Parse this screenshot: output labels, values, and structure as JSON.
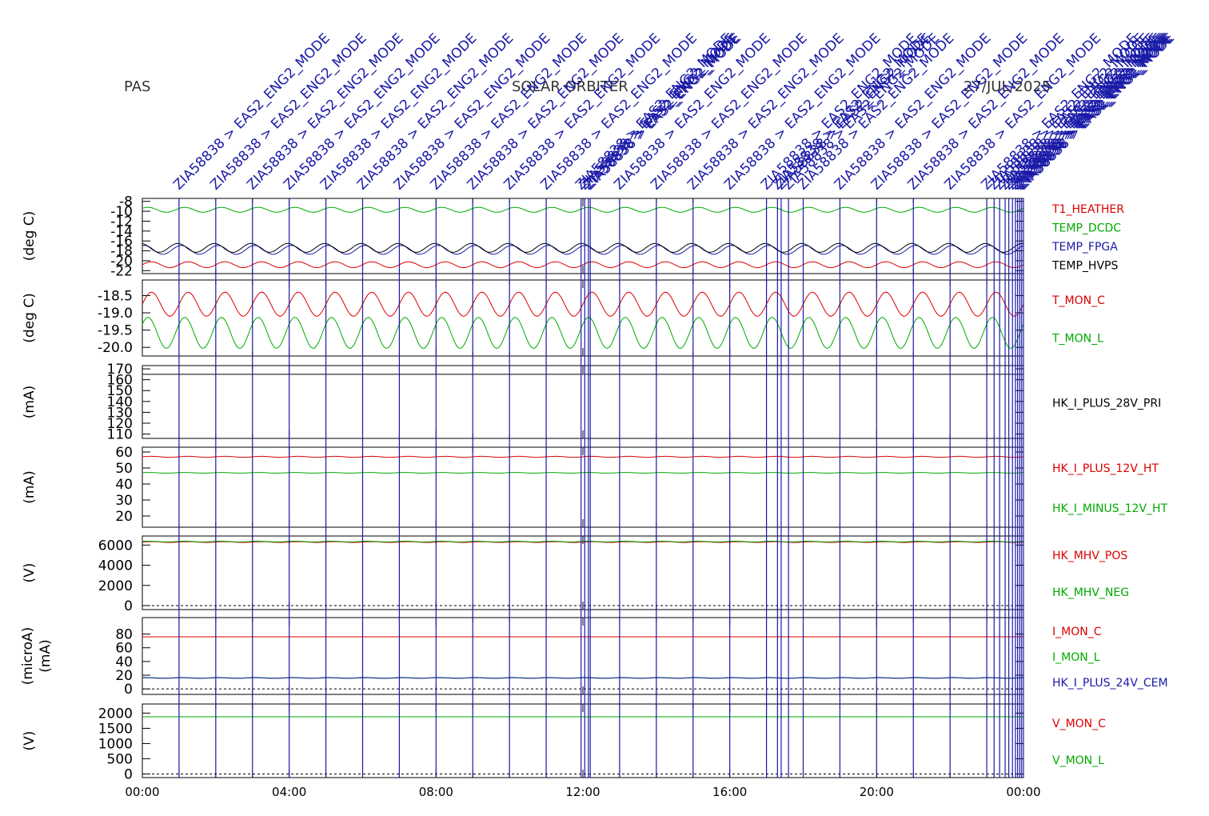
{
  "header": {
    "left": "PAS",
    "center": "SOLAR ORBITER",
    "right": "27/JUL/2025"
  },
  "event_label": "ZIA58838 > EAS2_ENG2_MODE",
  "colors": {
    "red": "#dd0000",
    "green": "#00aa00",
    "blue": "#1a1aa8",
    "black": "#000000"
  },
  "chart_data": [
    {
      "type": "line",
      "ylabel": "(deg C)",
      "yticks": [
        -22,
        -20,
        -18,
        -16,
        -14,
        -12,
        -10,
        -8
      ],
      "ylim": [
        -22.6,
        -7.4
      ],
      "grid": false,
      "series": [
        {
          "name": "T1_HEATHER",
          "color": "#dd0000",
          "base": -20.8,
          "amp": 0.6
        },
        {
          "name": "TEMP_DCDC",
          "color": "#00aa00",
          "base": -9.7,
          "amp": 0.5
        },
        {
          "name": "TEMP_FPGA",
          "color": "#1a1aa8",
          "base": -17.8,
          "amp": 0.9
        },
        {
          "name": "TEMP_HVPS",
          "color": "#000000",
          "base": -17.4,
          "amp": 0.9
        }
      ]
    },
    {
      "type": "line",
      "ylabel": "(deg C)",
      "yticks": [
        "-18.5",
        "-19.0",
        "-19.5",
        "-20.0"
      ],
      "ylim": [
        -20.25,
        -18.05
      ],
      "grid": false,
      "series": [
        {
          "name": "T_MON_C",
          "color": "#dd0000",
          "base": -18.75,
          "amp": 0.35
        },
        {
          "name": "T_MON_L",
          "color": "#00aa00",
          "base": -19.58,
          "amp": 0.45
        }
      ]
    },
    {
      "type": "line",
      "ylabel": "(mA)",
      "yticks": [
        110,
        120,
        130,
        140,
        150,
        160,
        170
      ],
      "ylim": [
        106,
        173
      ],
      "grid": false,
      "series": [
        {
          "name": "HK_I_PLUS_28V_PRI",
          "color": "#000000",
          "base": 165,
          "amp": 0
        }
      ]
    },
    {
      "type": "line",
      "ylabel": "(mA)",
      "yticks": [
        20,
        30,
        40,
        50,
        60
      ],
      "ylim": [
        13,
        63
      ],
      "grid": false,
      "series": [
        {
          "name": "HK_I_PLUS_12V_HT",
          "color": "#dd0000",
          "base": 57,
          "amp": 0.3
        },
        {
          "name": "HK_I_MINUS_12V_HT",
          "color": "#00aa00",
          "base": 47,
          "amp": 0.2
        }
      ]
    },
    {
      "type": "line",
      "ylabel": "(V)",
      "yticks": [
        0,
        2000,
        4000,
        6000
      ],
      "ylim": [
        -400,
        6900
      ],
      "grid": false,
      "series": [
        {
          "name": "HK_MHV_POS",
          "color": "#dd0000",
          "base": 6300,
          "amp": 40
        },
        {
          "name": "HK_MHV_NEG",
          "color": "#00aa00",
          "base": 6350,
          "amp": 40
        }
      ]
    },
    {
      "type": "line",
      "ylabel": "(microA)",
      "ylabel2": "(mA)",
      "yticks": [
        0,
        20,
        40,
        60,
        80
      ],
      "ylim": [
        -8,
        104
      ],
      "grid": false,
      "series": [
        {
          "name": "I_MON_C",
          "color": "#dd0000",
          "base": 76,
          "amp": 0
        },
        {
          "name": "I_MON_L",
          "color": "#00aa00",
          "base": 16,
          "amp": 0.3
        },
        {
          "name": "HK_I_PLUS_24V_CEM",
          "color": "#1a1aa8",
          "base": 16,
          "amp": 0.6
        }
      ]
    },
    {
      "type": "line",
      "ylabel": "(V)",
      "yticks": [
        0,
        500,
        1000,
        1500,
        2000
      ],
      "ylim": [
        -120,
        2300
      ],
      "grid": false,
      "series": [
        {
          "name": "V_MON_C",
          "color": "#dd0000",
          "base": 1880,
          "amp": 0
        },
        {
          "name": "V_MON_L",
          "color": "#00aa00",
          "base": 1880,
          "amp": 0
        }
      ]
    }
  ],
  "x_axis": {
    "range_hours": [
      0,
      24
    ],
    "tick_labels": [
      "00:00",
      "04:00",
      "08:00",
      "12:00",
      "16:00",
      "20:00",
      "00:00"
    ],
    "tick_hours": [
      0,
      4,
      8,
      12,
      16,
      20,
      24
    ]
  },
  "event_hours": [
    1,
    2,
    3,
    4,
    5,
    6,
    7,
    8,
    9,
    10,
    11,
    11.95,
    12.05,
    12.15,
    12.2,
    13,
    14,
    15,
    16,
    17,
    17.3,
    17.4,
    17.6,
    18,
    19,
    20,
    21,
    22,
    23,
    23.2,
    23.35,
    23.5,
    23.6,
    23.7,
    23.78,
    23.84,
    23.9,
    23.95,
    24
  ]
}
